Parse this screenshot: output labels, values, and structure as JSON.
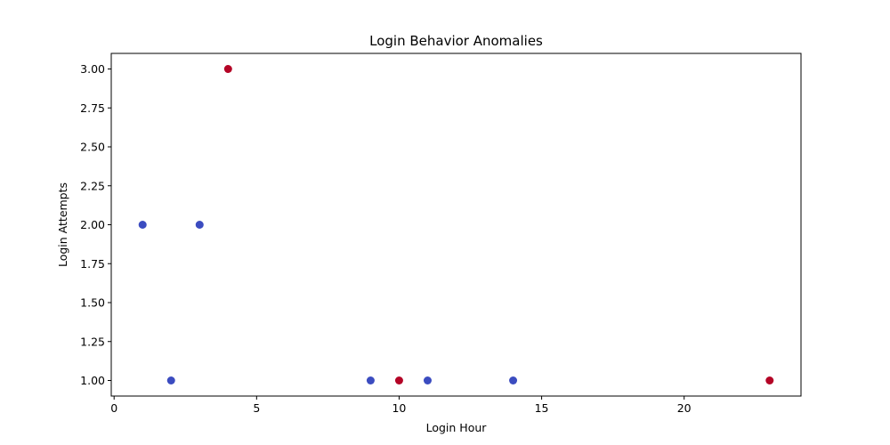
{
  "chart_data": {
    "type": "scatter",
    "title": "Login Behavior Anomalies",
    "xlabel": "Login Hour",
    "ylabel": "Login Attempts",
    "xlim": [
      -0.1,
      24.1
    ],
    "ylim": [
      0.9,
      3.1
    ],
    "xticks": [
      0,
      5,
      10,
      15,
      20
    ],
    "xtick_labels": [
      "0",
      "5",
      "10",
      "15",
      "20"
    ],
    "yticks": [
      1.0,
      1.25,
      1.5,
      1.75,
      2.0,
      2.25,
      2.5,
      2.75,
      3.0
    ],
    "ytick_labels": [
      "1.00",
      "1.25",
      "1.50",
      "1.75",
      "2.00",
      "2.25",
      "2.50",
      "2.75",
      "3.00"
    ],
    "grid": false,
    "colors": {
      "normal": "#3b4cc0",
      "anomaly": "#b40426"
    },
    "points": [
      {
        "x": 1,
        "y": 2,
        "anomaly": false
      },
      {
        "x": 2,
        "y": 1,
        "anomaly": false
      },
      {
        "x": 3,
        "y": 2,
        "anomaly": false
      },
      {
        "x": 4,
        "y": 3,
        "anomaly": true
      },
      {
        "x": 9,
        "y": 1,
        "anomaly": false
      },
      {
        "x": 10,
        "y": 1,
        "anomaly": true
      },
      {
        "x": 11,
        "y": 1,
        "anomaly": false
      },
      {
        "x": 14,
        "y": 1,
        "anomaly": false
      },
      {
        "x": 23,
        "y": 1,
        "anomaly": true
      }
    ]
  }
}
